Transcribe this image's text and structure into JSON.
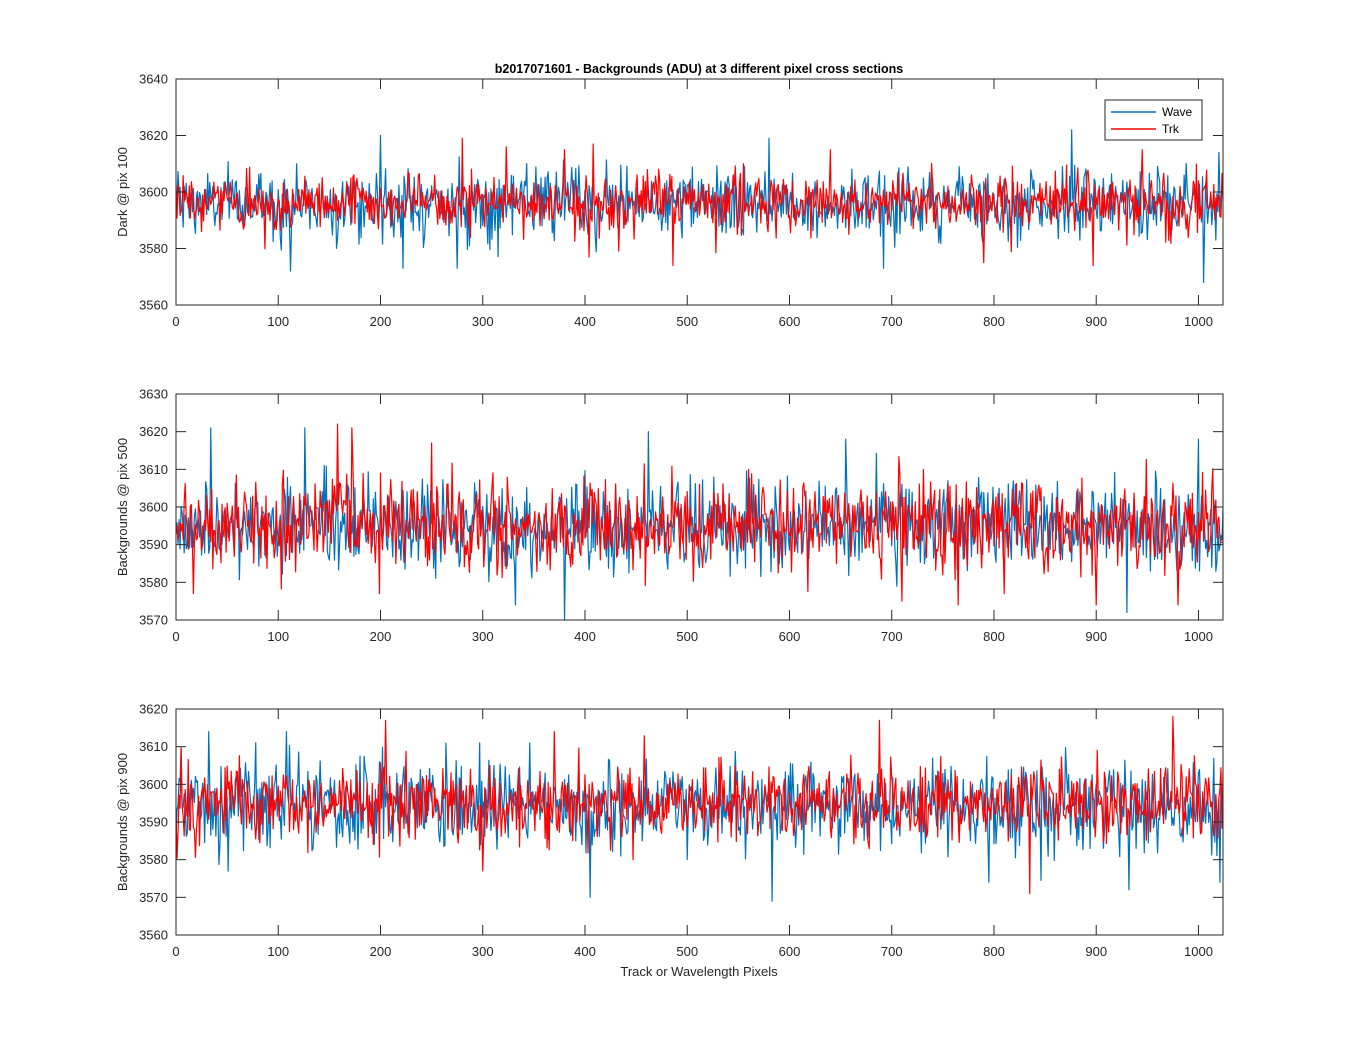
{
  "figure": {
    "title": "b2017071601 - Backgrounds (ADU) at 3 different pixel cross sections",
    "xlabel": "Track or Wavelength Pixels",
    "legend": {
      "entries": [
        "Wave",
        "Trk"
      ],
      "placement": "top-right (top panel)"
    }
  },
  "colors": {
    "wave": "#0072bd",
    "trk": "#ff0000",
    "axis": "#262626",
    "background": "#ffffff"
  },
  "chart_data": [
    {
      "type": "line",
      "ylabel": "Dark @ pix 100",
      "xlim": [
        0,
        1024
      ],
      "ylim": [
        3560,
        3640
      ],
      "xticks": [
        0,
        100,
        200,
        300,
        400,
        500,
        600,
        700,
        800,
        900,
        1000
      ],
      "yticks": [
        3560,
        3580,
        3600,
        3620,
        3640
      ],
      "series": [
        {
          "name": "Wave",
          "mean": 3596,
          "spread": 6,
          "min": 3568,
          "max": 3622,
          "spikes": [
            [
              112,
              3572
            ],
            [
              200,
              3620
            ],
            [
              222,
              3573
            ],
            [
              275,
              3573
            ],
            [
              580,
              3619
            ],
            [
              692,
              3573
            ],
            [
              876,
              3622
            ],
            [
              1005,
              3568
            ],
            [
              1020,
              3614
            ]
          ]
        },
        {
          "name": "Trk",
          "mean": 3596,
          "spread": 5,
          "min": 3574,
          "max": 3619,
          "spikes": [
            [
              280,
              3619
            ],
            [
              323,
              3616
            ],
            [
              380,
              3615
            ],
            [
              408,
              3617
            ],
            [
              486,
              3574
            ],
            [
              640,
              3615
            ],
            [
              790,
              3575
            ],
            [
              897,
              3574
            ],
            [
              945,
              3615
            ]
          ]
        }
      ]
    },
    {
      "type": "line",
      "ylabel": "Backgrounds @ pix 500",
      "xlim": [
        0,
        1024
      ],
      "ylim": [
        3570,
        3630
      ],
      "xticks": [
        0,
        100,
        200,
        300,
        400,
        500,
        600,
        700,
        800,
        900,
        1000
      ],
      "yticks": [
        3570,
        3580,
        3590,
        3600,
        3610,
        3620,
        3630
      ],
      "series": [
        {
          "name": "Wave",
          "mean": 3595,
          "spread": 6,
          "min": 3570,
          "max": 3621,
          "spikes": [
            [
              34,
              3621
            ],
            [
              126,
              3621
            ],
            [
              332,
              3574
            ],
            [
              380,
              3570
            ],
            [
              462,
              3620
            ],
            [
              655,
              3618
            ],
            [
              930,
              3572
            ],
            [
              1000,
              3618
            ]
          ]
        },
        {
          "name": "Trk",
          "mean": 3595,
          "spread": 6,
          "min": 3574,
          "max": 3622,
          "spikes": [
            [
              158,
              3622
            ],
            [
              172,
              3621
            ],
            [
              250,
              3617
            ],
            [
              710,
              3575
            ],
            [
              765,
              3574
            ],
            [
              900,
              3574
            ],
            [
              980,
              3574
            ]
          ]
        }
      ]
    },
    {
      "type": "line",
      "ylabel": "Backgrounds @ pix 900",
      "xlim": [
        0,
        1024
      ],
      "ylim": [
        3560,
        3620
      ],
      "xticks": [
        0,
        100,
        200,
        300,
        400,
        500,
        600,
        700,
        800,
        900,
        1000
      ],
      "yticks": [
        3560,
        3570,
        3580,
        3590,
        3600,
        3610,
        3620
      ],
      "series": [
        {
          "name": "Wave",
          "mean": 3594,
          "spread": 6,
          "min": 3569,
          "max": 3614,
          "spikes": [
            [
              32,
              3614
            ],
            [
              108,
              3614
            ],
            [
              405,
              3570
            ],
            [
              583,
              3569
            ],
            [
              795,
              3574
            ],
            [
              932,
              3572
            ],
            [
              1021,
              3574
            ]
          ]
        },
        {
          "name": "Trk",
          "mean": 3595,
          "spread": 5,
          "min": 3571,
          "max": 3618,
          "spikes": [
            [
              205,
              3617
            ],
            [
              688,
              3617
            ],
            [
              835,
              3571
            ],
            [
              975,
              3618
            ],
            [
              370,
              3614
            ],
            [
              300,
              3577
            ]
          ]
        }
      ]
    }
  ]
}
